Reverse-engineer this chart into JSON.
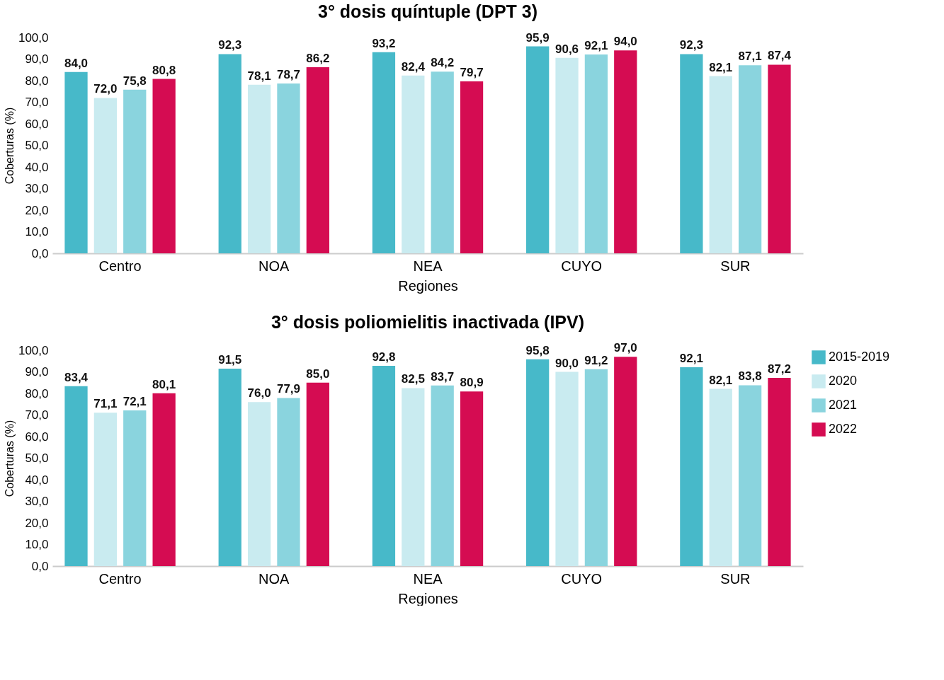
{
  "chart_data": [
    {
      "type": "bar",
      "title": "3° dosis quíntuple (DPT 3)",
      "xlabel": "Regiones",
      "ylabel": "Coberturas (%)",
      "categories": [
        "Centro",
        "NOA",
        "NEA",
        "CUYO",
        "SUR"
      ],
      "series": [
        {
          "color": "#47b9c9",
          "values": [
            84.0,
            92.3,
            93.2,
            95.9,
            92.3
          ],
          "value_labels": [
            "84,0",
            "92,3",
            "93,2",
            "95,9",
            "92,3"
          ]
        },
        {
          "color": "#c9ebf0",
          "values": [
            72.0,
            78.1,
            82.4,
            90.6,
            82.1
          ],
          "value_labels": [
            "72,0",
            "78,1",
            "82,4",
            "90,6",
            "82,1"
          ]
        },
        {
          "color": "#8ad4de",
          "values": [
            75.8,
            78.7,
            84.2,
            92.1,
            87.1
          ],
          "value_labels": [
            "75,8",
            "78,7",
            "84,2",
            "92,1",
            "87,1"
          ]
        },
        {
          "color": "#d50c52",
          "values": [
            80.8,
            86.2,
            79.7,
            94.0,
            87.4
          ],
          "value_labels": [
            "80,8",
            "86,2",
            "79,7",
            "94,0",
            "87,4"
          ]
        }
      ],
      "ylim": [
        0,
        100
      ],
      "yticks": [
        {
          "value": 0,
          "label": "0,0"
        },
        {
          "value": 10,
          "label": "10,0"
        },
        {
          "value": 20,
          "label": "20,0"
        },
        {
          "value": 30,
          "label": "30,0"
        },
        {
          "value": 40,
          "label": "40,0"
        },
        {
          "value": 50,
          "label": "50,0"
        },
        {
          "value": 60,
          "label": "60,0"
        },
        {
          "value": 70,
          "label": "70,0"
        },
        {
          "value": 80,
          "label": "80,0"
        },
        {
          "value": 90,
          "label": "90,0"
        },
        {
          "value": 100,
          "label": "100,0"
        }
      ],
      "grid": false,
      "legend": false
    },
    {
      "type": "bar",
      "title": "3° dosis poliomielitis inactivada (IPV)",
      "xlabel": "Regiones",
      "ylabel": "Coberturas (%)",
      "categories": [
        "Centro",
        "NOA",
        "NEA",
        "CUYO",
        "SUR"
      ],
      "series": [
        {
          "name": "2015-2019",
          "color": "#47b9c9",
          "values": [
            83.4,
            91.5,
            92.8,
            95.8,
            92.1
          ],
          "value_labels": [
            "83,4",
            "91,5",
            "92,8",
            "95,8",
            "92,1"
          ]
        },
        {
          "name": "2020",
          "color": "#c9ebf0",
          "values": [
            71.1,
            76.0,
            82.5,
            90.0,
            82.1
          ],
          "value_labels": [
            "71,1",
            "76,0",
            "82,5",
            "90,0",
            "82,1"
          ]
        },
        {
          "name": "2021",
          "color": "#8ad4de",
          "values": [
            72.1,
            77.9,
            83.7,
            91.2,
            83.8
          ],
          "value_labels": [
            "72,1",
            "77,9",
            "83,7",
            "91,2",
            "83,8"
          ]
        },
        {
          "name": "2022",
          "color": "#d50c52",
          "values": [
            80.1,
            85.0,
            80.9,
            97.0,
            87.2
          ],
          "value_labels": [
            "80,1",
            "85,0",
            "80,9",
            "97,0",
            "87,2"
          ]
        }
      ],
      "ylim": [
        0,
        100
      ],
      "yticks": [
        {
          "value": 0,
          "label": "0,0"
        },
        {
          "value": 10,
          "label": "10,0"
        },
        {
          "value": 20,
          "label": "20,0"
        },
        {
          "value": 30,
          "label": "30,0"
        },
        {
          "value": 40,
          "label": "40,0"
        },
        {
          "value": 50,
          "label": "50,0"
        },
        {
          "value": 60,
          "label": "60,0"
        },
        {
          "value": 70,
          "label": "70,0"
        },
        {
          "value": 80,
          "label": "80,0"
        },
        {
          "value": 90,
          "label": "90,0"
        },
        {
          "value": 100,
          "label": "100,0"
        }
      ],
      "grid": false,
      "legend": "right"
    }
  ]
}
